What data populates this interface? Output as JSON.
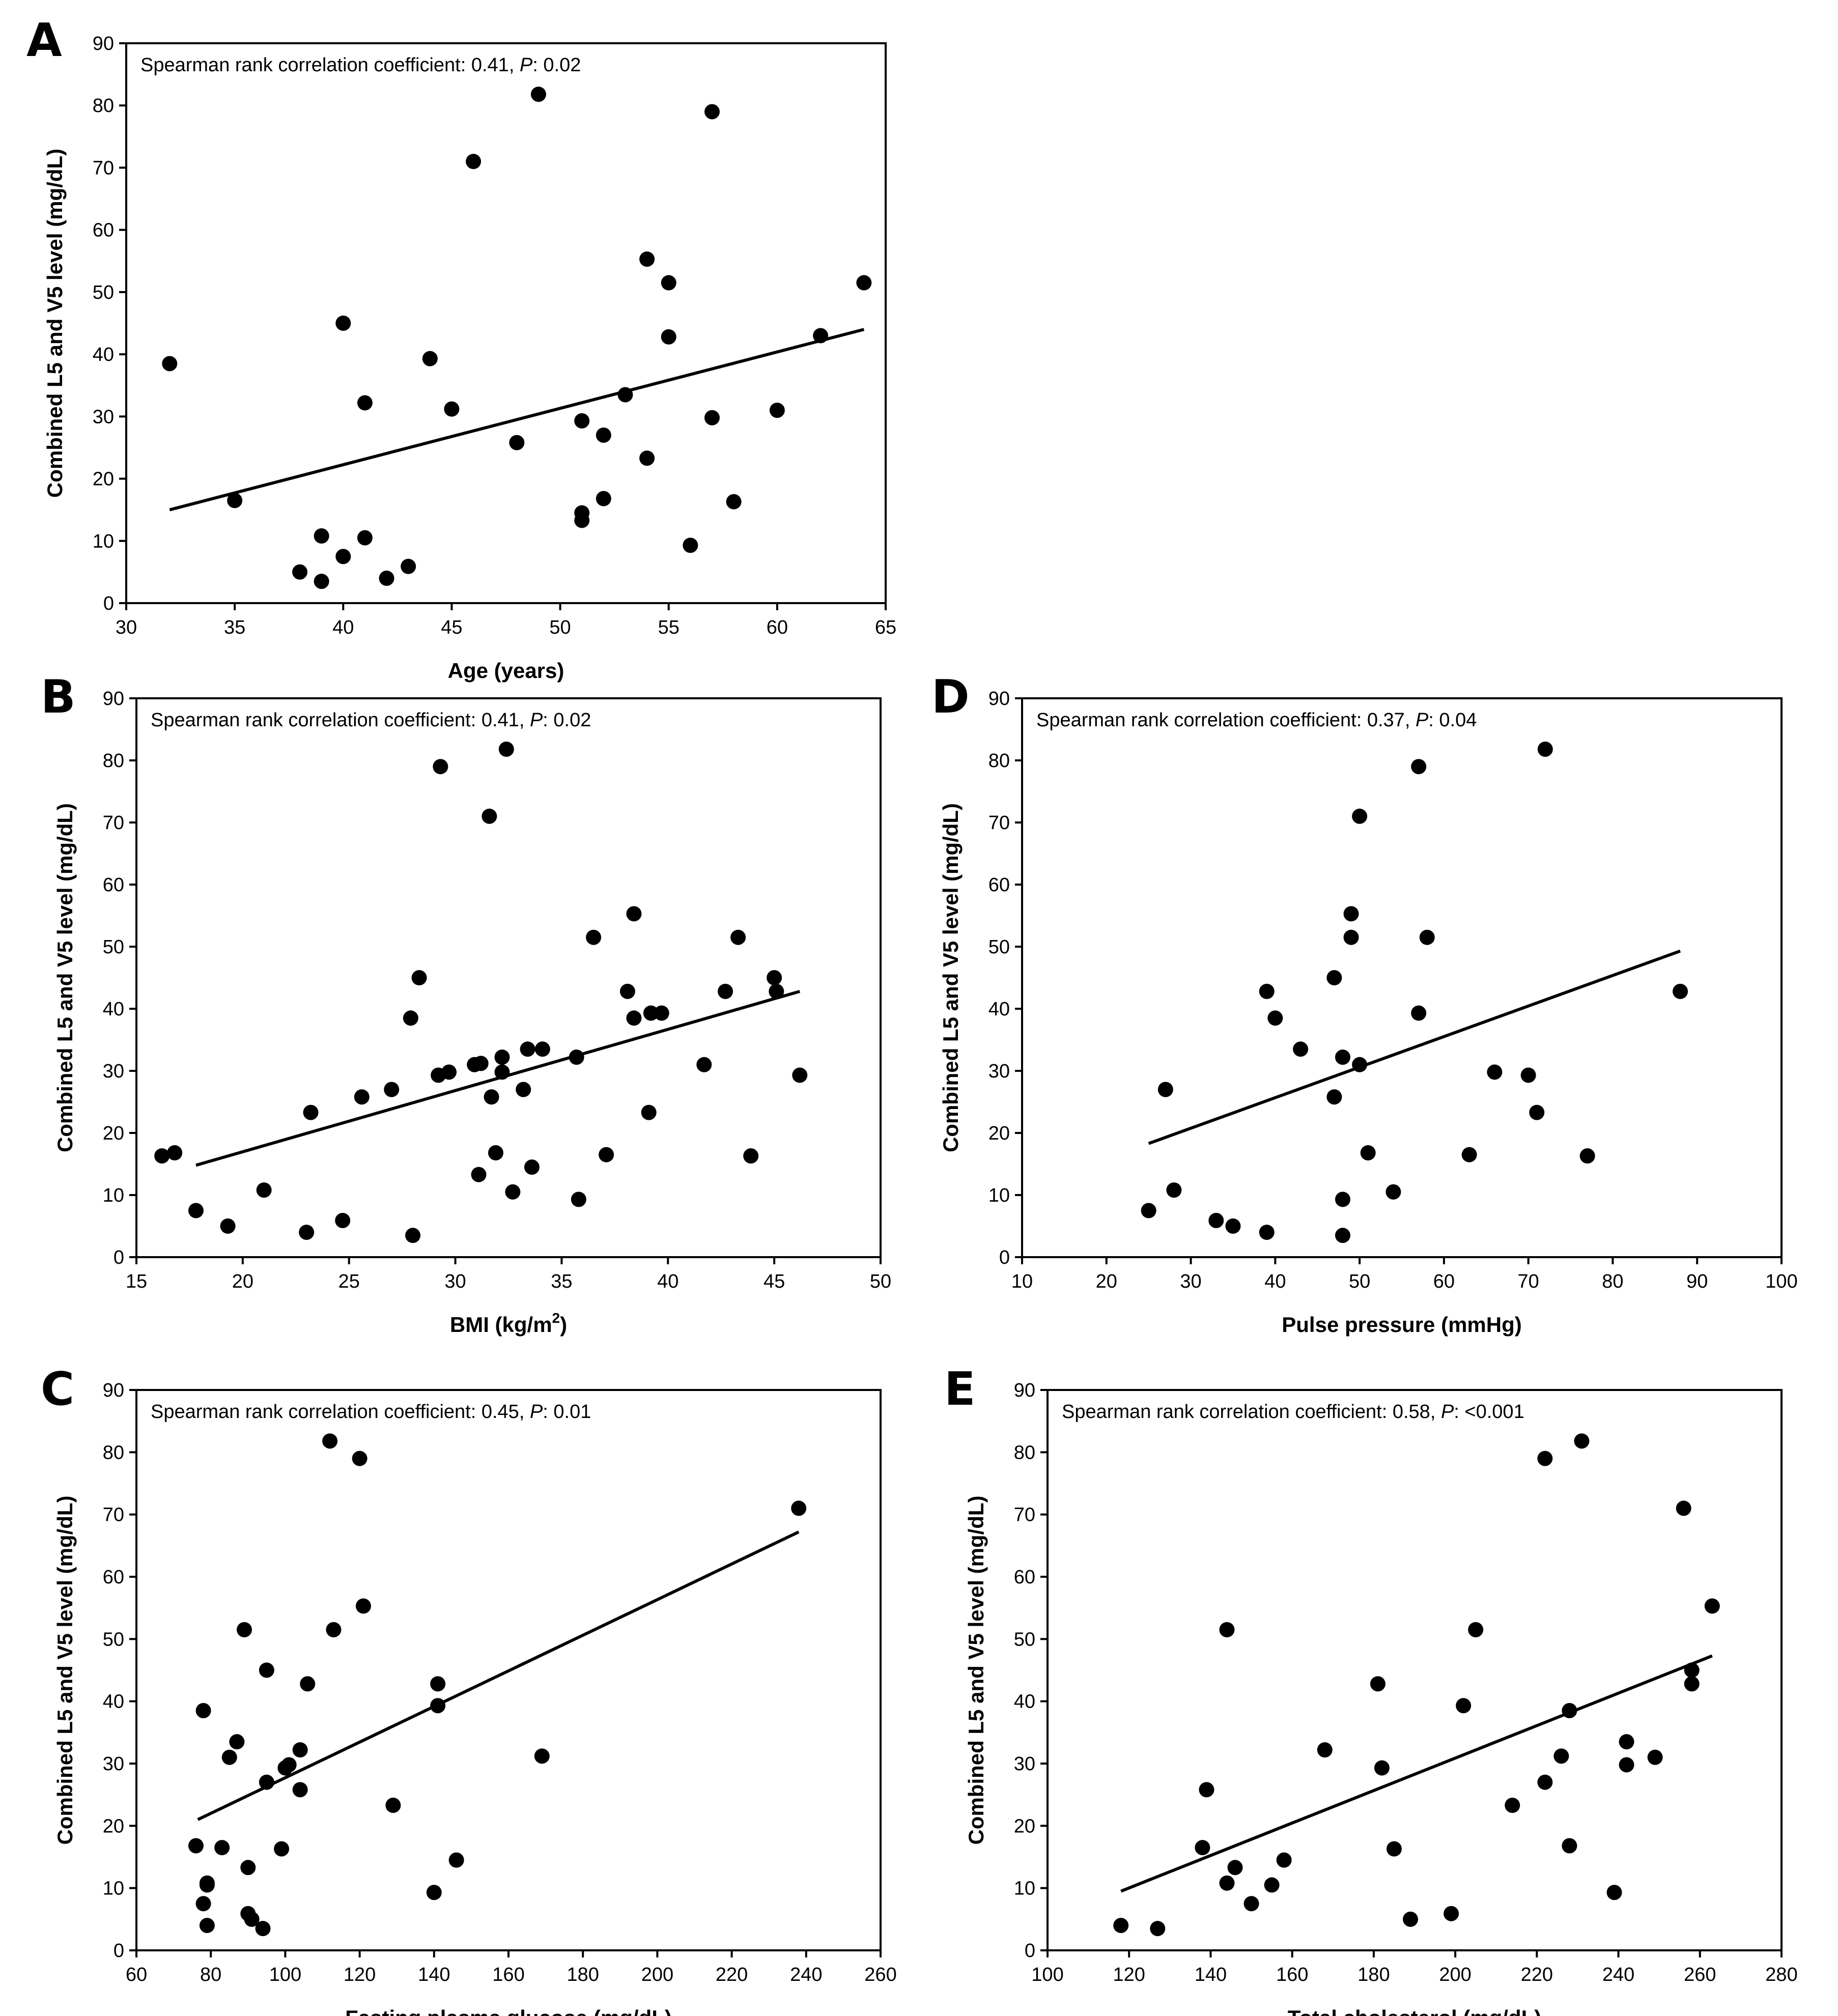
{
  "figure": {
    "ylabel": "Combined L5  and V5 level (mg/dL)"
  },
  "chart_data": [
    {
      "panel": "A",
      "type": "scatter",
      "xlabel": "Age (years)",
      "ylabel": "Combined L5  and V5 level (mg/dL)",
      "xlim": [
        30,
        65
      ],
      "ylim": [
        0,
        90
      ],
      "xticks": [
        30,
        35,
        40,
        45,
        50,
        55,
        60,
        65
      ],
      "yticks": [
        0,
        10,
        20,
        30,
        40,
        50,
        60,
        70,
        80,
        90
      ],
      "annotation": {
        "prefix": "Spearman rank correlation coefficient: 0.41, ",
        "p_label": "P",
        "suffix": ": 0.02"
      },
      "regression": {
        "x": [
          32,
          64
        ],
        "y": [
          15,
          44
        ]
      },
      "points": [
        [
          32,
          38.5
        ],
        [
          35,
          16.5
        ],
        [
          38,
          5
        ],
        [
          39,
          3.5
        ],
        [
          39,
          10.8
        ],
        [
          40,
          7.5
        ],
        [
          40,
          45
        ],
        [
          41,
          10.5
        ],
        [
          41,
          32.2
        ],
        [
          42,
          4
        ],
        [
          43,
          5.9
        ],
        [
          44,
          39.3
        ],
        [
          45,
          31.2
        ],
        [
          46,
          71
        ],
        [
          48,
          25.8
        ],
        [
          49,
          81.8
        ],
        [
          51,
          13.3
        ],
        [
          51,
          14.5
        ],
        [
          51,
          29.3
        ],
        [
          52,
          16.8
        ],
        [
          52,
          27
        ],
        [
          53,
          33.5
        ],
        [
          54,
          23.3
        ],
        [
          54,
          55.3
        ],
        [
          55,
          42.8
        ],
        [
          55,
          51.5
        ],
        [
          56,
          9.3
        ],
        [
          57,
          29.8
        ],
        [
          57,
          79
        ],
        [
          58,
          16.3
        ],
        [
          60,
          31
        ],
        [
          62,
          43
        ],
        [
          64,
          51.5
        ]
      ]
    },
    {
      "panel": "B",
      "type": "scatter",
      "xlabel": "BMI (kg/m",
      "xlabel_sup": "2",
      "xlabel_end": ")",
      "ylabel": "Combined L5  and V5 level (mg/dL)",
      "xlim": [
        15,
        50
      ],
      "ylim": [
        0,
        90
      ],
      "xticks": [
        15,
        20,
        25,
        30,
        35,
        40,
        45,
        50
      ],
      "yticks": [
        0,
        10,
        20,
        30,
        40,
        50,
        60,
        70,
        80,
        90
      ],
      "annotation": {
        "prefix": "Spearman rank correlation coefficient: 0.41, ",
        "p_label": "P",
        "suffix": ": 0.02"
      },
      "regression": {
        "x": [
          17.8,
          46.2
        ],
        "y": [
          14.8,
          42.8
        ]
      },
      "points": [
        [
          16.2,
          16.3
        ],
        [
          16.8,
          16.8
        ],
        [
          17.8,
          7.5
        ],
        [
          19.3,
          5
        ],
        [
          21,
          10.8
        ],
        [
          23,
          4
        ],
        [
          23.2,
          23.3
        ],
        [
          24.7,
          5.9
        ],
        [
          25.6,
          25.8
        ],
        [
          27,
          27
        ],
        [
          27.9,
          38.5
        ],
        [
          28,
          3.5
        ],
        [
          28.3,
          45
        ],
        [
          29.2,
          29.3
        ],
        [
          29.3,
          79
        ],
        [
          29.7,
          29.8
        ],
        [
          30.9,
          31
        ],
        [
          31.1,
          13.3
        ],
        [
          31.2,
          31.2
        ],
        [
          31.6,
          71
        ],
        [
          31.7,
          25.8
        ],
        [
          31.9,
          16.8
        ],
        [
          32.2,
          29.8
        ],
        [
          32.2,
          32.2
        ],
        [
          32.4,
          81.8
        ],
        [
          32.7,
          10.5
        ],
        [
          33.2,
          27
        ],
        [
          33.4,
          33.5
        ],
        [
          33.6,
          14.5
        ],
        [
          34.1,
          33.5
        ],
        [
          35.7,
          32.2
        ],
        [
          35.8,
          9.3
        ],
        [
          36.5,
          51.5
        ],
        [
          37.1,
          16.5
        ],
        [
          38.1,
          42.8
        ],
        [
          38.4,
          38.5
        ],
        [
          38.4,
          55.3
        ],
        [
          39.1,
          23.3
        ],
        [
          39.2,
          39.3
        ],
        [
          39.7,
          39.3
        ],
        [
          41.7,
          31
        ],
        [
          42.7,
          42.8
        ],
        [
          43.3,
          51.5
        ],
        [
          43.9,
          16.3
        ],
        [
          45,
          45
        ],
        [
          45.1,
          42.8
        ],
        [
          46.2,
          29.3
        ]
      ]
    },
    {
      "panel": "C",
      "type": "scatter",
      "xlabel": "Fasting plasma glucose (mg/dL)",
      "ylabel": "Combined L5  and V5 level (mg/dL)",
      "xlim": [
        60,
        260
      ],
      "ylim": [
        0,
        90
      ],
      "xticks": [
        60,
        80,
        100,
        120,
        140,
        160,
        180,
        200,
        220,
        240,
        260
      ],
      "yticks": [
        0,
        10,
        20,
        30,
        40,
        50,
        60,
        70,
        80,
        90
      ],
      "annotation": {
        "prefix": "Spearman rank correlation coefficient: 0.45, ",
        "p_label": "P",
        "suffix": ": 0.01"
      },
      "regression": {
        "x": [
          76.5,
          238
        ],
        "y": [
          21,
          67.2
        ]
      },
      "points": [
        [
          76,
          16.8
        ],
        [
          78,
          7.5
        ],
        [
          78,
          38.5
        ],
        [
          79,
          4
        ],
        [
          79,
          10.5
        ],
        [
          79,
          10.8
        ],
        [
          83,
          16.5
        ],
        [
          85,
          31
        ],
        [
          87,
          33.5
        ],
        [
          89,
          51.5
        ],
        [
          90,
          13.3
        ],
        [
          90,
          5.9
        ],
        [
          91,
          5
        ],
        [
          94,
          3.5
        ],
        [
          95,
          45
        ],
        [
          95,
          27
        ],
        [
          99,
          16.3
        ],
        [
          100,
          29.3
        ],
        [
          101,
          29.8
        ],
        [
          104,
          25.8
        ],
        [
          104,
          32.2
        ],
        [
          106,
          42.8
        ],
        [
          112,
          81.8
        ],
        [
          113,
          51.5
        ],
        [
          120,
          79
        ],
        [
          121,
          55.3
        ],
        [
          129,
          23.3
        ],
        [
          140,
          9.3
        ],
        [
          141,
          42.8
        ],
        [
          141,
          39.3
        ],
        [
          146,
          14.5
        ],
        [
          169,
          31.2
        ],
        [
          238,
          71
        ]
      ]
    },
    {
      "panel": "D",
      "type": "scatter",
      "xlabel": "Pulse pressure (mmHg)",
      "ylabel": "Combined L5  and V5 level (mg/dL)",
      "xlim": [
        10,
        100
      ],
      "ylim": [
        0,
        90
      ],
      "xticks": [
        10,
        20,
        30,
        40,
        50,
        60,
        70,
        80,
        90,
        100
      ],
      "yticks": [
        0,
        10,
        20,
        30,
        40,
        50,
        60,
        70,
        80,
        90
      ],
      "annotation": {
        "prefix": "Spearman rank correlation coefficient: 0.37, ",
        "p_label": "P",
        "suffix": ": 0.04"
      },
      "regression": {
        "x": [
          25,
          88
        ],
        "y": [
          18.3,
          49.3
        ]
      },
      "points": [
        [
          25,
          7.5
        ],
        [
          27,
          27
        ],
        [
          28,
          10.8
        ],
        [
          33,
          5.9
        ],
        [
          35,
          5
        ],
        [
          39,
          4
        ],
        [
          39,
          42.8
        ],
        [
          40,
          38.5
        ],
        [
          43,
          33.5
        ],
        [
          47,
          45
        ],
        [
          47,
          25.8
        ],
        [
          48,
          32.2
        ],
        [
          48,
          9.3
        ],
        [
          48,
          3.5
        ],
        [
          49,
          55.3
        ],
        [
          49,
          51.5
        ],
        [
          50,
          71
        ],
        [
          50,
          31
        ],
        [
          51,
          16.8
        ],
        [
          54,
          10.5
        ],
        [
          57,
          79
        ],
        [
          57,
          39.3
        ],
        [
          58,
          51.5
        ],
        [
          63,
          16.5
        ],
        [
          66,
          29.8
        ],
        [
          70,
          29.3
        ],
        [
          71,
          23.3
        ],
        [
          72,
          81.8
        ],
        [
          77,
          16.3
        ],
        [
          88,
          42.8
        ]
      ]
    },
    {
      "panel": "E",
      "type": "scatter",
      "xlabel": "Total cholesterol (mg/dL)",
      "ylabel": "Combined L5  and V5 level (mg/dL)",
      "xlim": [
        100,
        280
      ],
      "ylim": [
        0,
        90
      ],
      "xticks": [
        100,
        120,
        140,
        160,
        180,
        200,
        220,
        240,
        260,
        280
      ],
      "yticks": [
        0,
        10,
        20,
        30,
        40,
        50,
        60,
        70,
        80,
        90
      ],
      "annotation": {
        "prefix": "Spearman rank correlation coefficient: 0.58, ",
        "p_label": "P",
        "suffix": ": <0.001"
      },
      "regression": {
        "x": [
          118,
          263
        ],
        "y": [
          9.5,
          47.3
        ]
      },
      "points": [
        [
          118,
          4
        ],
        [
          127,
          3.5
        ],
        [
          138,
          16.5
        ],
        [
          139,
          25.8
        ],
        [
          144,
          10.8
        ],
        [
          144,
          51.5
        ],
        [
          146,
          13.3
        ],
        [
          150,
          7.5
        ],
        [
          155,
          10.5
        ],
        [
          158,
          14.5
        ],
        [
          168,
          32.2
        ],
        [
          181,
          42.8
        ],
        [
          182,
          29.3
        ],
        [
          185,
          16.3
        ],
        [
          189,
          5
        ],
        [
          199,
          5.9
        ],
        [
          202,
          39.3
        ],
        [
          205,
          51.5
        ],
        [
          214,
          23.3
        ],
        [
          222,
          79
        ],
        [
          222,
          27
        ],
        [
          226,
          31.2
        ],
        [
          228,
          38.5
        ],
        [
          228,
          16.8
        ],
        [
          231,
          81.8
        ],
        [
          239,
          9.3
        ],
        [
          242,
          33.5
        ],
        [
          242,
          29.8
        ],
        [
          249,
          31
        ],
        [
          256,
          71
        ],
        [
          258,
          45
        ],
        [
          258,
          42.8
        ],
        [
          263,
          55.3
        ]
      ]
    }
  ]
}
